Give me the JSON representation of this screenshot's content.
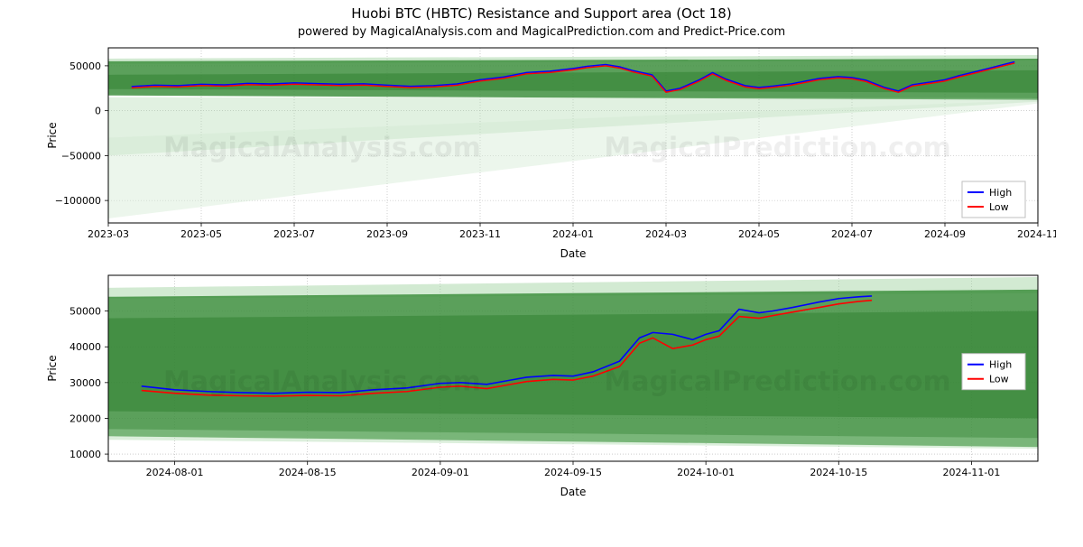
{
  "figure": {
    "title": "Huobi BTC (HBTC) Resistance and Support area (Oct 18)",
    "subtitle": "powered by MagicalAnalysis.com and MagicalPrediction.com and Predict-Price.com",
    "watermarks": [
      "MagicalAnalysis.com",
      "MagicalPrediction.com"
    ],
    "background_color": "#ffffff"
  },
  "chart1": {
    "type": "line",
    "xlabel": "Date",
    "ylabel": "Price",
    "xlim": [
      0,
      20
    ],
    "ylim": [
      -125000,
      70000
    ],
    "yticks": [
      -100000,
      -50000,
      0,
      50000
    ],
    "ytick_labels": [
      "−100000",
      "−50000",
      "0",
      "50000"
    ],
    "xticks": [
      0,
      2,
      4,
      6,
      8,
      10,
      12,
      14,
      16,
      18,
      20
    ],
    "xtick_labels": [
      "2023-03",
      "2023-05",
      "2023-07",
      "2023-09",
      "2023-11",
      "2024-01",
      "2024-03",
      "2024-05",
      "2024-07",
      "2024-09",
      "2024-11"
    ],
    "grid_color": "#b0b0b0",
    "border_color": "#000000",
    "bands": [
      {
        "y0_start": 52000,
        "y1_start": 58000,
        "y0_end": 56000,
        "y1_end": 62000,
        "fill": "#9bd19b",
        "opacity": 0.45
      },
      {
        "y0_start": 17000,
        "y1_start": 55000,
        "y0_end": 12000,
        "y1_end": 58000,
        "fill": "#3e8f3e",
        "opacity": 0.85
      },
      {
        "y0_start": 24000,
        "y1_start": 40000,
        "y0_end": 20000,
        "y1_end": 45000,
        "fill": "#2e7d2e",
        "opacity": 0.5
      },
      {
        "y0_start": -50000,
        "y1_start": 15000,
        "y0_end": 10000,
        "y1_end": 14000,
        "fill": "#a8d8a8",
        "opacity": 0.35
      },
      {
        "y0_start": -120000,
        "y1_start": -30000,
        "y0_end": 8000,
        "y1_end": 12000,
        "fill": "#cfe9cf",
        "opacity": 0.4
      }
    ],
    "series": [
      {
        "name": "High",
        "color": "#0000ff",
        "linewidth": 1.4,
        "data": [
          [
            0.5,
            27000
          ],
          [
            1,
            28500
          ],
          [
            1.5,
            28000
          ],
          [
            2,
            29500
          ],
          [
            2.5,
            28800
          ],
          [
            3,
            30500
          ],
          [
            3.5,
            29800
          ],
          [
            4,
            31000
          ],
          [
            4.5,
            30200
          ],
          [
            5,
            29500
          ],
          [
            5.5,
            30000
          ],
          [
            6,
            28500
          ],
          [
            6.5,
            27200
          ],
          [
            7,
            28000
          ],
          [
            7.5,
            29800
          ],
          [
            8,
            34500
          ],
          [
            8.5,
            37500
          ],
          [
            9,
            42500
          ],
          [
            9.5,
            44000
          ],
          [
            10,
            47000
          ],
          [
            10.3,
            49500
          ],
          [
            10.7,
            51500
          ],
          [
            11,
            49000
          ],
          [
            11.3,
            44500
          ],
          [
            11.7,
            40000
          ],
          [
            12,
            22000
          ],
          [
            12.3,
            25000
          ],
          [
            12.7,
            34000
          ],
          [
            13,
            42500
          ],
          [
            13.3,
            35000
          ],
          [
            13.7,
            28000
          ],
          [
            14,
            26000
          ],
          [
            14.3,
            27500
          ],
          [
            14.7,
            30000
          ],
          [
            15,
            33000
          ],
          [
            15.3,
            36000
          ],
          [
            15.7,
            38000
          ],
          [
            16,
            37000
          ],
          [
            16.3,
            34000
          ],
          [
            16.7,
            26000
          ],
          [
            17,
            22000
          ],
          [
            17.3,
            29000
          ],
          [
            17.7,
            32000
          ],
          [
            18,
            34500
          ],
          [
            18.3,
            39000
          ],
          [
            18.7,
            44000
          ],
          [
            19,
            48000
          ],
          [
            19.3,
            52000
          ],
          [
            19.5,
            54500
          ]
        ]
      },
      {
        "name": "Low",
        "color": "#ff0000",
        "linewidth": 1.4,
        "data": [
          [
            0.5,
            25500
          ],
          [
            1,
            27000
          ],
          [
            1.5,
            26500
          ],
          [
            2,
            28000
          ],
          [
            2.5,
            27300
          ],
          [
            3,
            29000
          ],
          [
            3.5,
            28300
          ],
          [
            4,
            29500
          ],
          [
            4.5,
            28700
          ],
          [
            5,
            28000
          ],
          [
            5.5,
            28500
          ],
          [
            6,
            27000
          ],
          [
            6.5,
            25700
          ],
          [
            7,
            26500
          ],
          [
            7.5,
            28300
          ],
          [
            8,
            33000
          ],
          [
            8.5,
            36000
          ],
          [
            9,
            41000
          ],
          [
            9.5,
            42500
          ],
          [
            10,
            45500
          ],
          [
            10.3,
            48000
          ],
          [
            10.7,
            50000
          ],
          [
            11,
            47500
          ],
          [
            11.3,
            43000
          ],
          [
            11.7,
            38500
          ],
          [
            12,
            20500
          ],
          [
            12.3,
            23500
          ],
          [
            12.7,
            32500
          ],
          [
            13,
            41000
          ],
          [
            13.3,
            33500
          ],
          [
            13.7,
            26500
          ],
          [
            14,
            24500
          ],
          [
            14.3,
            26000
          ],
          [
            14.7,
            28500
          ],
          [
            15,
            31500
          ],
          [
            15.3,
            34500
          ],
          [
            15.7,
            36500
          ],
          [
            16,
            35500
          ],
          [
            16.3,
            32500
          ],
          [
            16.7,
            24500
          ],
          [
            17,
            20500
          ],
          [
            17.3,
            27500
          ],
          [
            17.7,
            30500
          ],
          [
            18,
            33000
          ],
          [
            18.3,
            37500
          ],
          [
            18.7,
            42500
          ],
          [
            19,
            46500
          ],
          [
            19.3,
            50500
          ],
          [
            19.5,
            53000
          ]
        ]
      }
    ],
    "legend": {
      "items": [
        {
          "label": "High",
          "color": "#0000ff"
        },
        {
          "label": "Low",
          "color": "#ff0000"
        }
      ],
      "position": "bottom-right"
    }
  },
  "chart2": {
    "type": "line",
    "xlabel": "Date",
    "ylabel": "Price",
    "xlim": [
      0,
      14
    ],
    "ylim": [
      8000,
      60000
    ],
    "yticks": [
      10000,
      20000,
      30000,
      40000,
      50000
    ],
    "ytick_labels": [
      "10000",
      "20000",
      "30000",
      "40000",
      "50000"
    ],
    "xticks": [
      1,
      3,
      5,
      7,
      9,
      11,
      13
    ],
    "xtick_labels": [
      "2024-08-01",
      "2024-08-15",
      "2024-09-01",
      "2024-09-15",
      "2024-10-01",
      "2024-10-15",
      "2024-11-01"
    ],
    "grid_color": "#b0b0b0",
    "border_color": "#000000",
    "bands": [
      {
        "y0_start": 53500,
        "y1_start": 56500,
        "y0_end": 55000,
        "y1_end": 59500,
        "fill": "#9bd19b",
        "opacity": 0.45
      },
      {
        "y0_start": 15000,
        "y1_start": 54000,
        "y0_end": 12000,
        "y1_end": 56000,
        "fill": "#3e8f3e",
        "opacity": 0.85
      },
      {
        "y0_start": 22000,
        "y1_start": 48000,
        "y0_end": 20000,
        "y1_end": 50000,
        "fill": "#2e7d2e",
        "opacity": 0.5
      },
      {
        "y0_start": 14000,
        "y1_start": 17000,
        "y0_end": 11500,
        "y1_end": 14500,
        "fill": "#a8d8a8",
        "opacity": 0.4
      }
    ],
    "series": [
      {
        "name": "High",
        "color": "#0000ff",
        "linewidth": 1.6,
        "data": [
          [
            0.5,
            29000
          ],
          [
            1,
            28000
          ],
          [
            1.5,
            27500
          ],
          [
            2,
            27200
          ],
          [
            2.5,
            27000
          ],
          [
            3,
            27300
          ],
          [
            3.5,
            27200
          ],
          [
            4,
            28000
          ],
          [
            4.5,
            28500
          ],
          [
            5,
            29800
          ],
          [
            5.3,
            30000
          ],
          [
            5.7,
            29500
          ],
          [
            6,
            30500
          ],
          [
            6.3,
            31500
          ],
          [
            6.7,
            32000
          ],
          [
            7,
            31800
          ],
          [
            7.3,
            33000
          ],
          [
            7.7,
            36000
          ],
          [
            8,
            42500
          ],
          [
            8.2,
            44000
          ],
          [
            8.5,
            43500
          ],
          [
            8.8,
            42000
          ],
          [
            9,
            43500
          ],
          [
            9.2,
            44500
          ],
          [
            9.5,
            50500
          ],
          [
            9.8,
            49500
          ],
          [
            10,
            50000
          ],
          [
            10.3,
            51000
          ],
          [
            10.7,
            52500
          ],
          [
            11,
            53500
          ],
          [
            11.3,
            54000
          ],
          [
            11.5,
            54200
          ]
        ]
      },
      {
        "name": "Low",
        "color": "#ff0000",
        "linewidth": 1.6,
        "data": [
          [
            0.5,
            27800
          ],
          [
            1,
            27000
          ],
          [
            1.5,
            26500
          ],
          [
            2,
            26300
          ],
          [
            2.5,
            26200
          ],
          [
            3,
            26400
          ],
          [
            3.5,
            26300
          ],
          [
            4,
            27000
          ],
          [
            4.5,
            27500
          ],
          [
            5,
            28700
          ],
          [
            5.3,
            29000
          ],
          [
            5.7,
            28300
          ],
          [
            6,
            29300
          ],
          [
            6.3,
            30300
          ],
          [
            6.7,
            30900
          ],
          [
            7,
            30700
          ],
          [
            7.3,
            31800
          ],
          [
            7.7,
            34500
          ],
          [
            8,
            41000
          ],
          [
            8.2,
            42500
          ],
          [
            8.5,
            39500
          ],
          [
            8.8,
            40500
          ],
          [
            9,
            42000
          ],
          [
            9.2,
            43000
          ],
          [
            9.5,
            48500
          ],
          [
            9.8,
            48000
          ],
          [
            10,
            48700
          ],
          [
            10.3,
            49700
          ],
          [
            10.7,
            51000
          ],
          [
            11,
            52000
          ],
          [
            11.3,
            52700
          ],
          [
            11.5,
            53000
          ]
        ]
      }
    ],
    "legend": {
      "items": [
        {
          "label": "High",
          "color": "#0000ff"
        },
        {
          "label": "Low",
          "color": "#ff0000"
        }
      ],
      "position": "right"
    }
  }
}
